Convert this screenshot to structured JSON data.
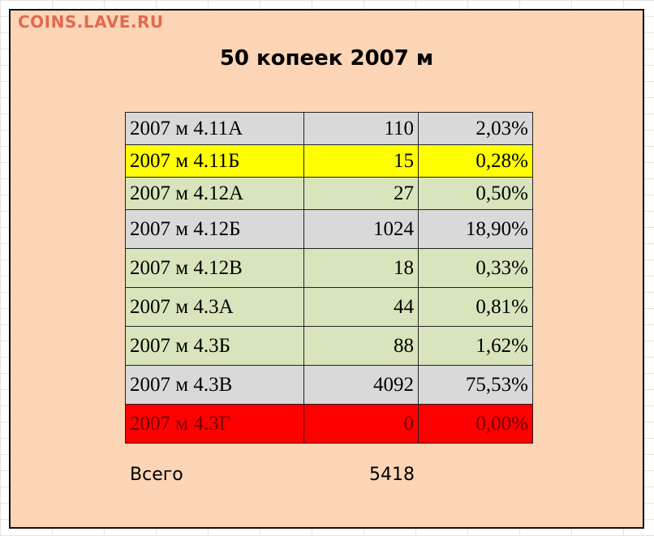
{
  "watermark": "COINS.LAVE.RU",
  "title": "50 копеек 2007 м",
  "rows": [
    {
      "name": "2007 м 4.11А",
      "count": "110",
      "pct": "2,03%",
      "color": "#d9d9d9"
    },
    {
      "name": "2007 м 4.11Б",
      "count": "15",
      "pct": "0,28%",
      "color": "#ffff00"
    },
    {
      "name": "2007 м 4.12А",
      "count": "27",
      "pct": "0,50%",
      "color": "#d8e4bc"
    },
    {
      "name": "2007 м 4.12Б",
      "count": "1024",
      "pct": "18,90%",
      "color": "#d9d9d9"
    },
    {
      "name": "2007 м 4.12В",
      "count": "18",
      "pct": "0,33%",
      "color": "#d8e4bc"
    },
    {
      "name": "2007 м 4.3А",
      "count": "44",
      "pct": "0,81%",
      "color": "#d8e4bc"
    },
    {
      "name": "2007 м 4.3Б",
      "count": "88",
      "pct": "1,62%",
      "color": "#d8e4bc"
    },
    {
      "name": "2007 м 4.3В",
      "count": "4092",
      "pct": "75,53%",
      "color": "#d9d9d9"
    },
    {
      "name": "2007 м 4.3Г",
      "count": "0",
      "pct": "0,00%",
      "color": "#ff0000"
    }
  ],
  "total": {
    "label": "Всего",
    "value": "5418"
  }
}
